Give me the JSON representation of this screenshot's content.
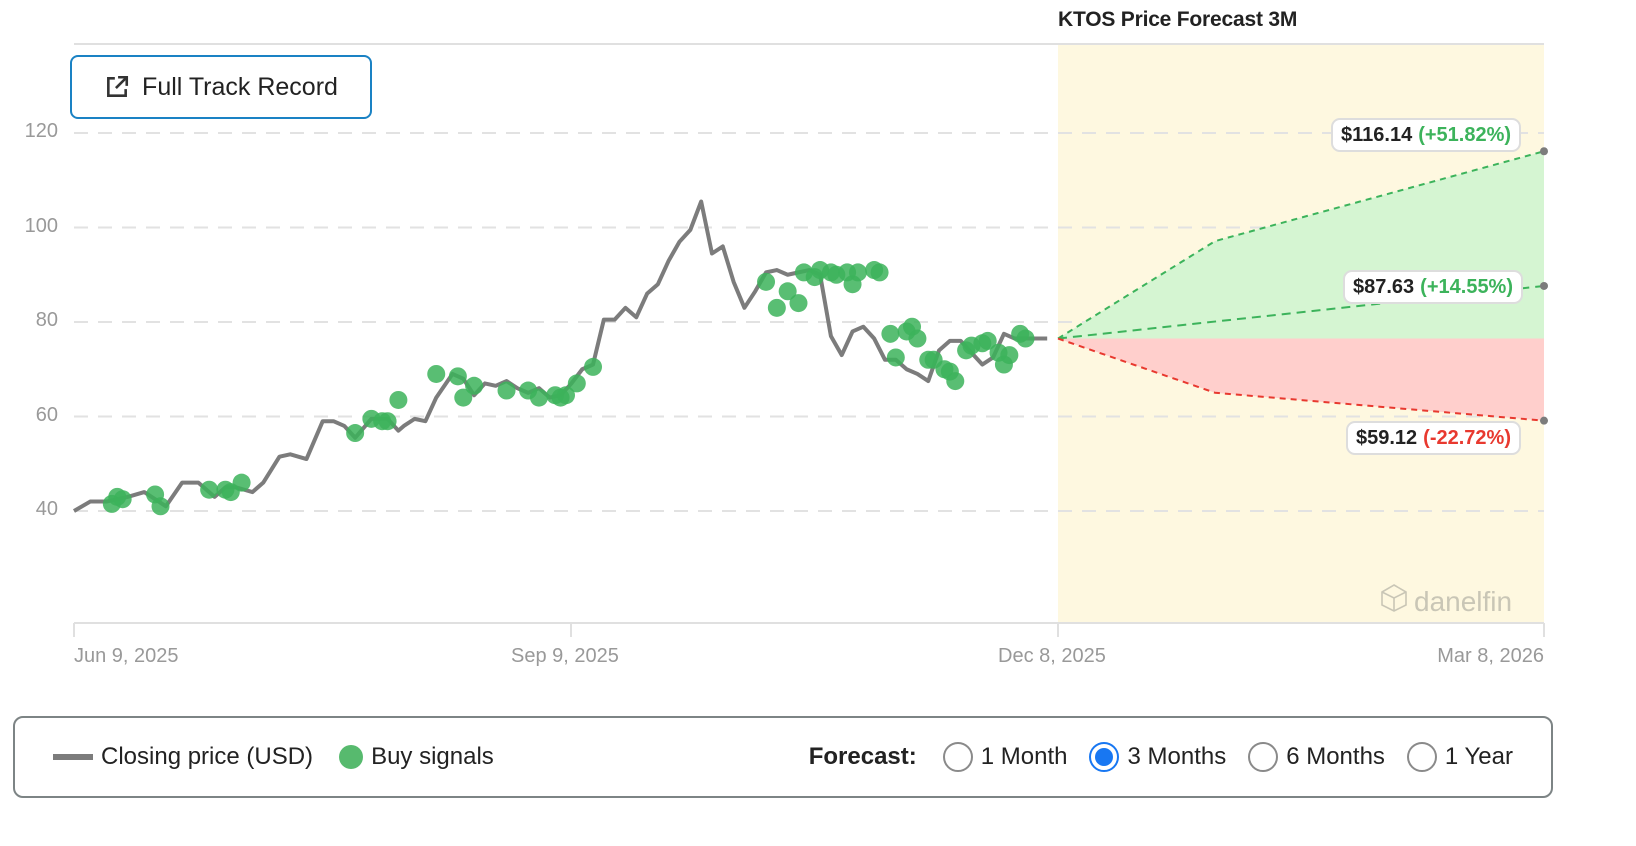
{
  "header": {
    "forecast_title": "KTOS Price Forecast 3M",
    "track_record_button": "Full Track Record"
  },
  "watermark": "danelfin",
  "colors": {
    "price_line": "#7c7c7c",
    "buy_signal": "#3cb35b",
    "forecast_bg": "#fef8e0",
    "upside_fill": "#d5f5d2",
    "downside_fill": "#ffcfcc",
    "up_text": "#3cb35b",
    "down_text": "#e8392f",
    "button_border": "#1a82c4",
    "radio_selected": "#1877f2"
  },
  "forecast_labels": [
    {
      "price": "$116.14",
      "change": "(+51.82%)",
      "direction": "up"
    },
    {
      "price": "$87.63",
      "change": "(+14.55%)",
      "direction": "up"
    },
    {
      "price": "$59.12",
      "change": "(-22.72%)",
      "direction": "down"
    }
  ],
  "legend": {
    "closing_price": "Closing price (USD)",
    "buy_signals": "Buy signals",
    "forecast_label": "Forecast:",
    "options": [
      {
        "label": "1 Month",
        "selected": false
      },
      {
        "label": "3 Months",
        "selected": true
      },
      {
        "label": "6 Months",
        "selected": false
      },
      {
        "label": "1 Year",
        "selected": false
      }
    ]
  },
  "chart_data": {
    "type": "line",
    "title": "KTOS Price Forecast 3M",
    "xlabel": "",
    "ylabel": "",
    "ylim": [
      18,
      138
    ],
    "grid": true,
    "legend_position": "bottom",
    "y_ticks": [
      40,
      60,
      80,
      100,
      120
    ],
    "x_ticks": [
      "Jun 9, 2025",
      "Sep 9, 2025",
      "Dec 8, 2025",
      "Mar 8, 2026"
    ],
    "series": [
      {
        "name": "Closing price (USD)",
        "x_days_from_jun9": [
          0,
          3,
          6,
          10,
          13,
          17,
          20,
          23,
          26,
          28,
          30,
          33,
          35,
          38,
          40,
          43,
          46,
          48,
          50,
          52,
          55,
          58,
          60,
          61,
          63,
          65,
          67,
          70,
          72,
          74,
          76,
          78,
          80,
          82,
          84,
          86,
          88,
          90,
          92,
          94,
          96,
          98,
          100,
          102,
          104,
          106,
          108,
          110,
          112,
          114,
          116,
          118,
          120,
          122,
          124,
          126,
          128,
          130,
          132,
          134,
          136,
          138,
          140,
          142,
          144,
          146,
          148,
          150,
          152,
          154,
          156,
          158,
          160,
          162,
          164,
          166,
          168,
          170,
          172,
          174,
          176,
          178,
          180
        ],
        "values": [
          40,
          42,
          42,
          43,
          44,
          41,
          46,
          46,
          43,
          45,
          45,
          44,
          46,
          51.5,
          52,
          51,
          59,
          59,
          58,
          55.5,
          59.5,
          59.5,
          57,
          58,
          59.5,
          59,
          64,
          69,
          68,
          64.5,
          67,
          66.5,
          67.5,
          66,
          65,
          66,
          64,
          64.5,
          67,
          70,
          71,
          80.5,
          80.5,
          83,
          81,
          86,
          88,
          93,
          97,
          99.5,
          105.5,
          94.5,
          96,
          88.5,
          83,
          86.5,
          90.5,
          91,
          90,
          90.5,
          91,
          90,
          77,
          73,
          78,
          79,
          76.5,
          72,
          72,
          70,
          69,
          67.5,
          74,
          76,
          76,
          73.5,
          71,
          72.5,
          77.5,
          76.5,
          76.5,
          76.5,
          76.5
        ]
      },
      {
        "name": "Buy signals",
        "type": "scatter",
        "x_days_from_jun9": [
          7,
          8,
          9,
          15,
          16,
          25,
          28,
          29,
          31,
          52,
          55,
          57,
          58,
          60,
          67,
          71,
          72,
          74,
          80,
          84,
          86,
          89,
          90,
          91,
          93,
          96,
          128,
          130,
          132,
          134,
          135,
          137,
          138,
          140,
          141,
          143,
          144,
          145,
          148,
          149,
          151,
          152,
          154,
          155,
          156,
          158,
          159,
          161,
          162,
          163,
          165,
          166,
          168,
          169,
          171,
          172,
          173,
          175,
          176
        ],
        "values": [
          41.5,
          43,
          42.5,
          43.5,
          41,
          44.5,
          44.5,
          44,
          46,
          56.5,
          59.5,
          59,
          59,
          63.5,
          69,
          68.5,
          64,
          66.5,
          65.5,
          65.5,
          64,
          64.5,
          64,
          64.5,
          67,
          70.5,
          88.5,
          83,
          86.5,
          84,
          90.5,
          89.5,
          91,
          90.5,
          90,
          90.5,
          88,
          90.5,
          91,
          90.5,
          77.5,
          72.5,
          78,
          79,
          76.5,
          72,
          72,
          70,
          69.5,
          67.5,
          74,
          75,
          75.5,
          76,
          73.5,
          71,
          73,
          77.5,
          76.5
        ]
      },
      {
        "name": "Forecast high",
        "x": [
          "Dec 8, 2025",
          "Mar 8, 2026"
        ],
        "values": [
          76.5,
          116.14
        ]
      },
      {
        "name": "Forecast mid",
        "x": [
          "Dec 8, 2025",
          "Mar 8, 2026"
        ],
        "values": [
          76.5,
          87.63
        ]
      },
      {
        "name": "Forecast low",
        "x": [
          "Dec 8, 2025",
          "Mar 8, 2026"
        ],
        "values": [
          76.5,
          59.12
        ]
      }
    ],
    "annotations": [
      "$116.14 (+51.82%)",
      "$87.63 (+14.55%)",
      "$59.12 (-22.72%)"
    ]
  }
}
